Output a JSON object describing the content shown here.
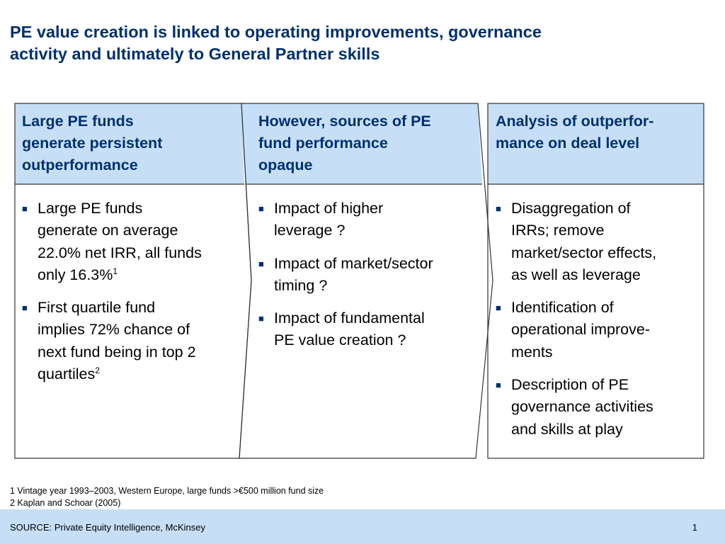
{
  "title": {
    "line1": "PE value creation is linked to operating improvements, governance",
    "line2": "activity and ultimately to General Partner skills"
  },
  "columns": [
    {
      "header": [
        "Large PE funds",
        "generate persistent",
        "outperformance"
      ],
      "bullets": [
        {
          "lines": [
            "Large PE funds",
            "generate on average",
            "22.0% net IRR, all funds",
            "only 16.3%"
          ],
          "sup": "1"
        },
        {
          "lines": [
            "First quartile fund",
            "implies 72% chance of",
            "next fund being in top 2",
            "quartiles"
          ],
          "sup": "2"
        }
      ]
    },
    {
      "header": [
        "However, sources of PE",
        "fund performance",
        "opaque"
      ],
      "bullets": [
        {
          "lines": [
            "Impact of higher",
            "leverage ?"
          ]
        },
        {
          "lines": [
            "Impact of market/sector",
            "timing ?"
          ]
        },
        {
          "lines": [
            "Impact of fundamental",
            "PE value creation ?"
          ]
        }
      ]
    },
    {
      "header": [
        "Analysis of outperfor-",
        "mance on deal level"
      ],
      "bullets": [
        {
          "lines": [
            "Disaggregation of",
            "IRRs; remove",
            "market/sector effects,",
            "as well as leverage"
          ]
        },
        {
          "lines": [
            "Identification of",
            "operational improve-",
            "ments"
          ]
        },
        {
          "lines": [
            "Description of PE",
            "governance activities",
            "and skills at play"
          ]
        }
      ]
    }
  ],
  "footnotes": {
    "note1": "1 Vintage year 1993–2003, Western Europe, large funds >€500 million fund size",
    "note2": "2 Kaplan and Schoar (2005)"
  },
  "source": "SOURCE: Private Equity Intelligence, McKinsey",
  "page_number": "1",
  "bullet_glyph": "■",
  "colors": {
    "title": "#00306e",
    "header_fill": "#c6dff7",
    "source_bar": "#c6dff7",
    "border": "#333333"
  }
}
